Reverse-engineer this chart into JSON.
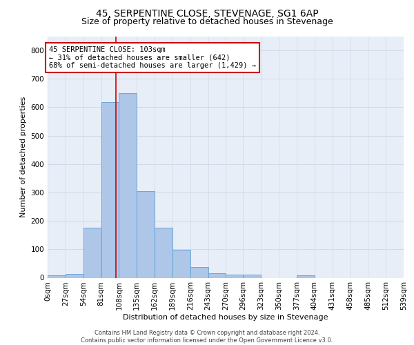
{
  "title": "45, SERPENTINE CLOSE, STEVENAGE, SG1 6AP",
  "subtitle": "Size of property relative to detached houses in Stevenage",
  "xlabel": "Distribution of detached houses by size in Stevenage",
  "ylabel": "Number of detached properties",
  "footer_line1": "Contains HM Land Registry data © Crown copyright and database right 2024.",
  "footer_line2": "Contains public sector information licensed under the Open Government Licence v3.0.",
  "bin_edges": [
    0,
    27,
    54,
    81,
    108,
    135,
    162,
    189,
    216,
    243,
    270,
    296,
    323,
    350,
    377,
    404,
    431,
    458,
    485,
    512,
    539
  ],
  "bar_heights": [
    8,
    13,
    175,
    617,
    650,
    305,
    175,
    98,
    38,
    15,
    12,
    10,
    0,
    0,
    8,
    0,
    0,
    0,
    0,
    0
  ],
  "bar_color": "#aec6e8",
  "bar_edge_color": "#5a9fd4",
  "property_size": 103,
  "vline_color": "#cc0000",
  "annotation_line1": "45 SERPENTINE CLOSE: 103sqm",
  "annotation_line2": "← 31% of detached houses are smaller (642)",
  "annotation_line3": "68% of semi-detached houses are larger (1,429) →",
  "annotation_box_color": "#ffffff",
  "annotation_box_edge": "#cc0000",
  "ylim": [
    0,
    850
  ],
  "yticks": [
    0,
    100,
    200,
    300,
    400,
    500,
    600,
    700,
    800
  ],
  "grid_color": "#d0d8e8",
  "bg_color": "#e8eef8",
  "title_fontsize": 10,
  "subtitle_fontsize": 9,
  "xlabel_fontsize": 8,
  "ylabel_fontsize": 8,
  "tick_fontsize": 7.5,
  "footer_fontsize": 6,
  "annotation_fontsize": 7.5
}
